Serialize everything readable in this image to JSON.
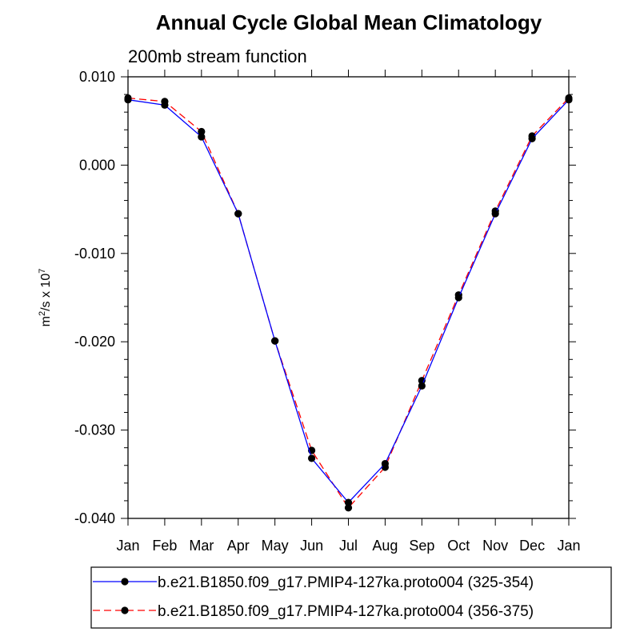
{
  "chart_data": {
    "type": "line",
    "title": "Annual Cycle Global Mean Climatology",
    "subtitle": "200mb stream function",
    "xlabel": "",
    "ylabel": "m²/s x 10⁷",
    "ylabel_base": "m",
    "ylabel_sup1": "2",
    "ylabel_mid": "/s x 10",
    "ylabel_sup2": "7",
    "categories": [
      "Jan",
      "Feb",
      "Mar",
      "Apr",
      "May",
      "Jun",
      "Jul",
      "Aug",
      "Sep",
      "Oct",
      "Nov",
      "Dec",
      "Jan"
    ],
    "ylim": [
      -0.04,
      0.01
    ],
    "yticks": [
      0.01,
      0.0,
      -0.01,
      -0.02,
      -0.03,
      -0.04
    ],
    "ytick_labels": [
      "0.010",
      "0.000",
      "-0.010",
      "-0.020",
      "-0.030",
      "-0.040"
    ],
    "series": [
      {
        "name": "b.e21.B1850.f09_g17.PMIP4-127ka.proto004 (325-354)",
        "color": "#0000ff",
        "dash": "solid",
        "values": [
          0.0074,
          0.0068,
          0.0032,
          -0.0055,
          -0.0199,
          -0.0332,
          -0.0382,
          -0.0338,
          -0.025,
          -0.015,
          -0.0055,
          0.003,
          0.0074
        ]
      },
      {
        "name": "b.e21.B1850.f09_g17.PMIP4-127ka.proto004 (356-375)",
        "color": "#ff0000",
        "dash": "dashed",
        "values": [
          0.0076,
          0.0072,
          0.0038,
          -0.0055,
          -0.0199,
          -0.0323,
          -0.0388,
          -0.0342,
          -0.0244,
          -0.0147,
          -0.0052,
          0.0033,
          0.0076
        ]
      }
    ],
    "legend_position": "bottom"
  }
}
